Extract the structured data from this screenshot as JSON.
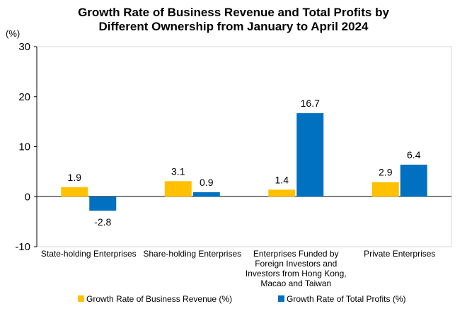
{
  "chart_data": {
    "type": "bar",
    "title_lines": [
      "Growth Rate of Business Revenue and Total Profits by",
      "Different Ownership from January to April 2024"
    ],
    "unit_label": "(%)",
    "categories": [
      [
        "State-holding Enterprises"
      ],
      [
        "Share-holding Enterprises"
      ],
      [
        "Enterprises Funded by",
        "Foreign Investors and",
        "Investors from Hong Kong,",
        "Macao and Taiwan"
      ],
      [
        "Private Enterprises"
      ]
    ],
    "series": [
      {
        "name": "Growth Rate of Business Revenue (%)",
        "values": [
          1.9,
          3.1,
          1.4,
          2.9
        ],
        "labels": [
          "1.9",
          "3.1",
          "1.4",
          "2.9"
        ],
        "color": "#FFC000"
      },
      {
        "name": "Growth Rate of Total Profits (%)",
        "values": [
          -2.8,
          0.9,
          16.7,
          6.4
        ],
        "labels": [
          "-2.8",
          "0.9",
          "16.7",
          "6.4"
        ],
        "color": "#0070C0"
      }
    ],
    "ylim": [
      -10,
      30
    ],
    "yticks": [
      "-10",
      "0",
      "10",
      "20",
      "30"
    ],
    "grid": false,
    "legend_position": "bottom"
  }
}
